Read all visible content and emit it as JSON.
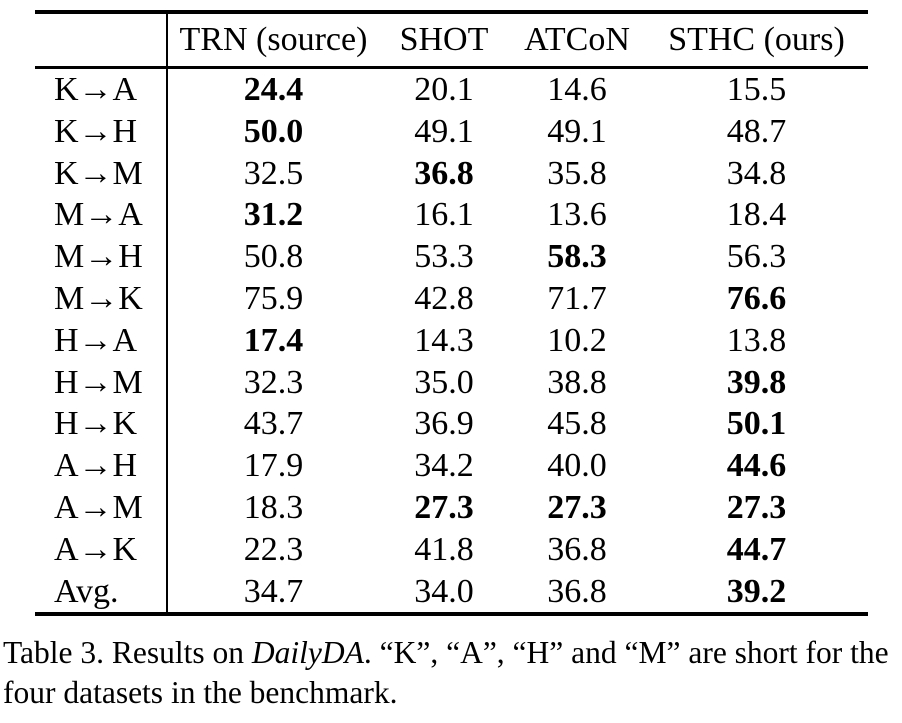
{
  "colors": {
    "text": "#000000",
    "background": "#ffffff",
    "rule": "#000000"
  },
  "table": {
    "header": {
      "corner": "",
      "columns": [
        "TRN (source)",
        "SHOT",
        "ATCoN",
        "STHC (ours)"
      ]
    },
    "rows": [
      {
        "label": "K→A",
        "values": [
          "24.4",
          "20.1",
          "14.6",
          "15.5"
        ],
        "bold": [
          true,
          false,
          false,
          false
        ]
      },
      {
        "label": "K→H",
        "values": [
          "50.0",
          "49.1",
          "49.1",
          "48.7"
        ],
        "bold": [
          true,
          false,
          false,
          false
        ]
      },
      {
        "label": "K→M",
        "values": [
          "32.5",
          "36.8",
          "35.8",
          "34.8"
        ],
        "bold": [
          false,
          true,
          false,
          false
        ]
      },
      {
        "label": "M→A",
        "values": [
          "31.2",
          "16.1",
          "13.6",
          "18.4"
        ],
        "bold": [
          true,
          false,
          false,
          false
        ]
      },
      {
        "label": "M→H",
        "values": [
          "50.8",
          "53.3",
          "58.3",
          "56.3"
        ],
        "bold": [
          false,
          false,
          true,
          false
        ]
      },
      {
        "label": "M→K",
        "values": [
          "75.9",
          "42.8",
          "71.7",
          "76.6"
        ],
        "bold": [
          false,
          false,
          false,
          true
        ]
      },
      {
        "label": "H→A",
        "values": [
          "17.4",
          "14.3",
          "10.2",
          "13.8"
        ],
        "bold": [
          true,
          false,
          false,
          false
        ]
      },
      {
        "label": "H→M",
        "values": [
          "32.3",
          "35.0",
          "38.8",
          "39.8"
        ],
        "bold": [
          false,
          false,
          false,
          true
        ]
      },
      {
        "label": "H→K",
        "values": [
          "43.7",
          "36.9",
          "45.8",
          "50.1"
        ],
        "bold": [
          false,
          false,
          false,
          true
        ]
      },
      {
        "label": "A→H",
        "values": [
          "17.9",
          "34.2",
          "40.0",
          "44.6"
        ],
        "bold": [
          false,
          false,
          false,
          true
        ]
      },
      {
        "label": "A→M",
        "values": [
          "18.3",
          "27.3",
          "27.3",
          "27.3"
        ],
        "bold": [
          false,
          true,
          true,
          true
        ]
      },
      {
        "label": "A→K",
        "values": [
          "22.3",
          "41.8",
          "36.8",
          "44.7"
        ],
        "bold": [
          false,
          false,
          false,
          true
        ]
      },
      {
        "label": "Avg.",
        "values": [
          "34.7",
          "34.0",
          "36.8",
          "39.2"
        ],
        "bold": [
          false,
          false,
          false,
          true
        ]
      }
    ]
  },
  "caption": {
    "segments": [
      {
        "text": "Table 3. Results on ",
        "italic": false
      },
      {
        "text": "DailyDA",
        "italic": true
      },
      {
        "text": ". “K”, “A”, “H” and “M” are short for the four datasets in the benchmark.",
        "italic": false
      }
    ]
  }
}
